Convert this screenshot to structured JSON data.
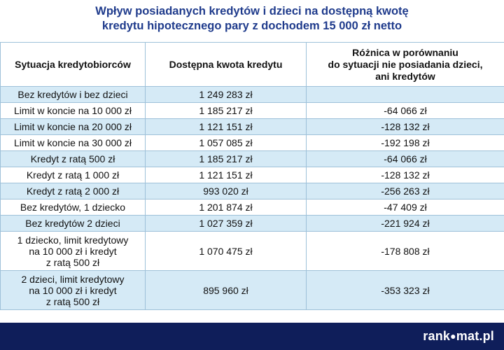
{
  "title": {
    "line1": "Wpływ posiadanych kredytów i dzieci na dostępną kwotę",
    "line2": "kredytu hipotecznego pary z dochodem 15 000 zł netto"
  },
  "table": {
    "headers": {
      "col1": "Sytuacja kredytobiorców",
      "col2": "Dostępna kwota kredytu",
      "col3_lines": [
        "Różnica w porównaniu",
        "do sytuacji nie posiadania dzieci,",
        "ani kredytów"
      ]
    },
    "rows": [
      {
        "situation": [
          "Bez kredytów i bez dzieci"
        ],
        "amount": "1 249 283 zł",
        "difference": ""
      },
      {
        "situation": [
          "Limit w koncie na 10 000 zł"
        ],
        "amount": "1 185 217 zł",
        "difference": "-64 066 zł"
      },
      {
        "situation": [
          "Limit w koncie na 20 000 zł"
        ],
        "amount": "1 121 151 zł",
        "difference": "-128 132 zł"
      },
      {
        "situation": [
          "Limit w koncie na 30 000 zł"
        ],
        "amount": "1 057 085 zł",
        "difference": "-192 198 zł"
      },
      {
        "situation": [
          "Kredyt z ratą 500 zł"
        ],
        "amount": "1 185 217 zł",
        "difference": "-64 066 zł"
      },
      {
        "situation": [
          "Kredyt z ratą 1 000 zł"
        ],
        "amount": "1 121 151 zł",
        "difference": "-128 132 zł"
      },
      {
        "situation": [
          "Kredyt z ratą 2 000 zł"
        ],
        "amount": "993 020 zł",
        "difference": "-256 263 zł"
      },
      {
        "situation": [
          "Bez kredytów, 1 dziecko"
        ],
        "amount": "1 201 874 zł",
        "difference": "-47 409 zł"
      },
      {
        "situation": [
          "Bez kredytów 2 dzieci"
        ],
        "amount": "1 027 359 zł",
        "difference": "-221 924 zł"
      },
      {
        "situation": [
          "1 dziecko, limit kredytowy",
          "na 10 000 zł i kredyt",
          "z ratą 500 zł"
        ],
        "amount": "1 070 475 zł",
        "difference": "-178 808 zł"
      },
      {
        "situation": [
          "2 dzieci, limit kredytowy",
          "na 10 000 zł i kredyt",
          "z ratą 500 zł"
        ],
        "amount": "895 960 zł",
        "difference": "-353 323 zł"
      }
    ]
  },
  "footer": {
    "logo_part1": "rank",
    "logo_dot": "●",
    "logo_part2": "mat.pl"
  },
  "colors": {
    "title": "#1f3b8c",
    "row_band": "#d5eaf6",
    "border": "#9ec1d9",
    "footer_bg": "#0f1e5a"
  }
}
